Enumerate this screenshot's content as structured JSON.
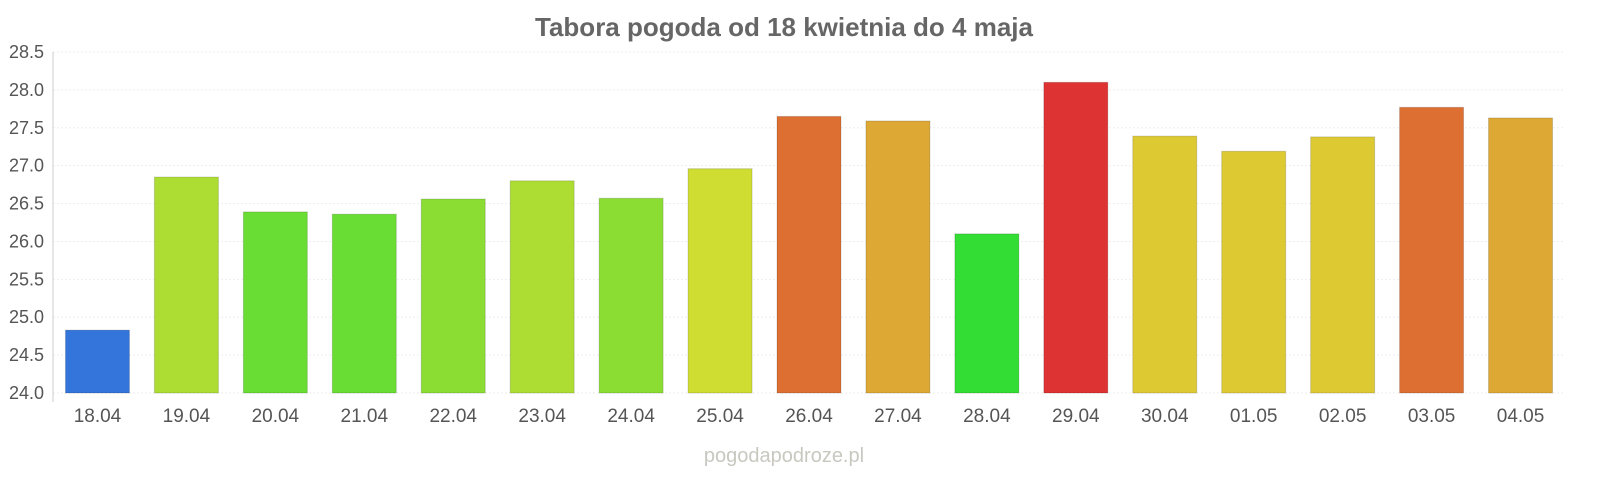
{
  "chart_data": {
    "type": "bar",
    "title": "Tabora pogoda od 18 kwietnia do 4 maja",
    "xlabel": "",
    "ylabel": "",
    "ylim": [
      24.0,
      28.5
    ],
    "yticks": [
      "24.0",
      "24.5",
      "25.0",
      "25.5",
      "26.0",
      "26.5",
      "27.0",
      "27.5",
      "28.0",
      "28.5"
    ],
    "grid": true,
    "categories": [
      "18.04",
      "19.04",
      "20.04",
      "21.04",
      "22.04",
      "23.04",
      "24.04",
      "25.04",
      "26.04",
      "27.04",
      "28.04",
      "29.04",
      "30.04",
      "01.05",
      "02.05",
      "03.05",
      "04.05"
    ],
    "values": [
      24.83,
      26.85,
      26.39,
      26.36,
      26.56,
      26.8,
      26.57,
      26.96,
      27.65,
      27.59,
      26.1,
      28.1,
      27.39,
      27.19,
      27.38,
      27.77,
      27.63
    ],
    "colors": [
      "#3375db",
      "#addd33",
      "#69dd33",
      "#69dd33",
      "#8bdd33",
      "#addd33",
      "#8bdd33",
      "#cfdd33",
      "#dd6f33",
      "#dda833",
      "#33dd33",
      "#dd3333",
      "#ddca33",
      "#ddca33",
      "#ddca33",
      "#dd6f33",
      "#dda833"
    ]
  },
  "watermark": "pogodapodroze.pl"
}
